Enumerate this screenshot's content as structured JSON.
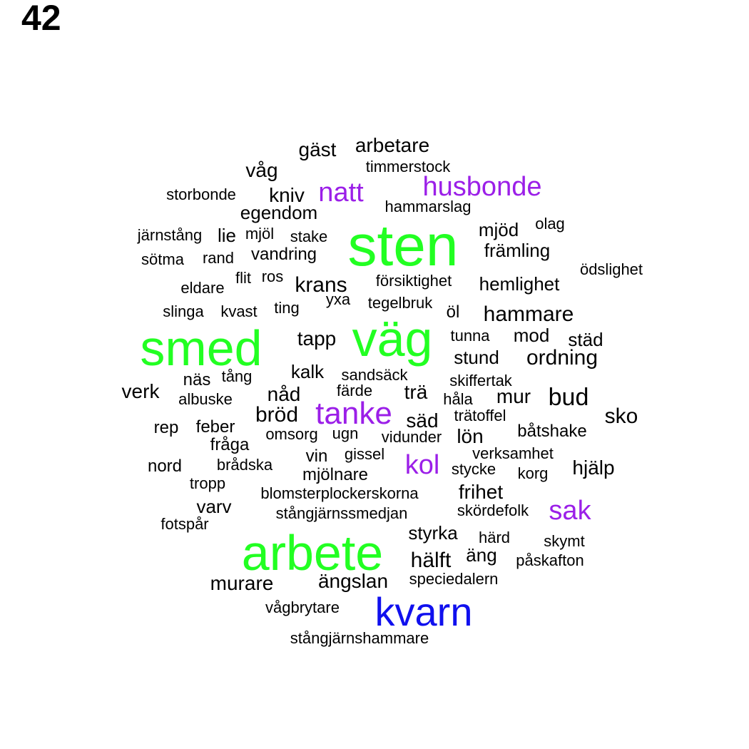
{
  "title": "42",
  "colors": {
    "default": "#000000",
    "green": "#22ff22",
    "purple": "#9b1fe8",
    "blue": "#1010ee"
  },
  "words": [
    {
      "text": "sten",
      "color": "green"
    },
    {
      "text": "väg",
      "color": "green"
    },
    {
      "text": "smed",
      "color": "green"
    },
    {
      "text": "arbete",
      "color": "green"
    },
    {
      "text": "kvarn",
      "color": "blue"
    },
    {
      "text": "tanke",
      "color": "purple"
    },
    {
      "text": "husbonde",
      "color": "purple"
    },
    {
      "text": "natt",
      "color": "purple"
    },
    {
      "text": "kol",
      "color": "purple"
    },
    {
      "text": "sak",
      "color": "purple"
    },
    {
      "text": "gäst",
      "color": "default"
    },
    {
      "text": "arbetare",
      "color": "default"
    },
    {
      "text": "timmerstock",
      "color": "default"
    },
    {
      "text": "våg",
      "color": "default"
    },
    {
      "text": "storbonde",
      "color": "default"
    },
    {
      "text": "kniv",
      "color": "default"
    },
    {
      "text": "hammarslag",
      "color": "default"
    },
    {
      "text": "egendom",
      "color": "default"
    },
    {
      "text": "järnstång",
      "color": "default"
    },
    {
      "text": "lie",
      "color": "default"
    },
    {
      "text": "mjöl",
      "color": "default"
    },
    {
      "text": "stake",
      "color": "default"
    },
    {
      "text": "mjöd",
      "color": "default"
    },
    {
      "text": "olag",
      "color": "default"
    },
    {
      "text": "sötma",
      "color": "default"
    },
    {
      "text": "rand",
      "color": "default"
    },
    {
      "text": "vandring",
      "color": "default"
    },
    {
      "text": "främling",
      "color": "default"
    },
    {
      "text": "ödslighet",
      "color": "default"
    },
    {
      "text": "eldare",
      "color": "default"
    },
    {
      "text": "flit",
      "color": "default"
    },
    {
      "text": "ros",
      "color": "default"
    },
    {
      "text": "krans",
      "color": "default"
    },
    {
      "text": "försiktighet",
      "color": "default"
    },
    {
      "text": "hemlighet",
      "color": "default"
    },
    {
      "text": "slinga",
      "color": "default"
    },
    {
      "text": "kvast",
      "color": "default"
    },
    {
      "text": "ting",
      "color": "default"
    },
    {
      "text": "yxa",
      "color": "default"
    },
    {
      "text": "tegelbruk",
      "color": "default"
    },
    {
      "text": "öl",
      "color": "default"
    },
    {
      "text": "hammare",
      "color": "default"
    },
    {
      "text": "tapp",
      "color": "default"
    },
    {
      "text": "tunna",
      "color": "default"
    },
    {
      "text": "mod",
      "color": "default"
    },
    {
      "text": "städ",
      "color": "default"
    },
    {
      "text": "stund",
      "color": "default"
    },
    {
      "text": "ordning",
      "color": "default"
    },
    {
      "text": "näs",
      "color": "default"
    },
    {
      "text": "tång",
      "color": "default"
    },
    {
      "text": "kalk",
      "color": "default"
    },
    {
      "text": "sandsäck",
      "color": "default"
    },
    {
      "text": "skiffertak",
      "color": "default"
    },
    {
      "text": "verk",
      "color": "default"
    },
    {
      "text": "albuske",
      "color": "default"
    },
    {
      "text": "nåd",
      "color": "default"
    },
    {
      "text": "färde",
      "color": "default"
    },
    {
      "text": "trä",
      "color": "default"
    },
    {
      "text": "håla",
      "color": "default"
    },
    {
      "text": "mur",
      "color": "default"
    },
    {
      "text": "bud",
      "color": "default"
    },
    {
      "text": "bröd",
      "color": "default"
    },
    {
      "text": "säd",
      "color": "default"
    },
    {
      "text": "trätoffel",
      "color": "default"
    },
    {
      "text": "sko",
      "color": "default"
    },
    {
      "text": "rep",
      "color": "default"
    },
    {
      "text": "feber",
      "color": "default"
    },
    {
      "text": "omsorg",
      "color": "default"
    },
    {
      "text": "ugn",
      "color": "default"
    },
    {
      "text": "vidunder",
      "color": "default"
    },
    {
      "text": "lön",
      "color": "default"
    },
    {
      "text": "båtshake",
      "color": "default"
    },
    {
      "text": "fråga",
      "color": "default"
    },
    {
      "text": "vin",
      "color": "default"
    },
    {
      "text": "gissel",
      "color": "default"
    },
    {
      "text": "verksamhet",
      "color": "default"
    },
    {
      "text": "nord",
      "color": "default"
    },
    {
      "text": "brådska",
      "color": "default"
    },
    {
      "text": "mjölnare",
      "color": "default"
    },
    {
      "text": "stycke",
      "color": "default"
    },
    {
      "text": "korg",
      "color": "default"
    },
    {
      "text": "hjälp",
      "color": "default"
    },
    {
      "text": "tropp",
      "color": "default"
    },
    {
      "text": "blomsterplockerskorna",
      "color": "default"
    },
    {
      "text": "frihet",
      "color": "default"
    },
    {
      "text": "varv",
      "color": "default"
    },
    {
      "text": "stångjärnssmedjan",
      "color": "default"
    },
    {
      "text": "skördefolk",
      "color": "default"
    },
    {
      "text": "fotspår",
      "color": "default"
    },
    {
      "text": "styrka",
      "color": "default"
    },
    {
      "text": "härd",
      "color": "default"
    },
    {
      "text": "skymt",
      "color": "default"
    },
    {
      "text": "äng",
      "color": "default"
    },
    {
      "text": "hälft",
      "color": "default"
    },
    {
      "text": "påskafton",
      "color": "default"
    },
    {
      "text": "murare",
      "color": "default"
    },
    {
      "text": "ängslan",
      "color": "default"
    },
    {
      "text": "speciedalern",
      "color": "default"
    },
    {
      "text": "vågbrytare",
      "color": "default"
    },
    {
      "text": "stångjärnshammare",
      "color": "default"
    }
  ]
}
